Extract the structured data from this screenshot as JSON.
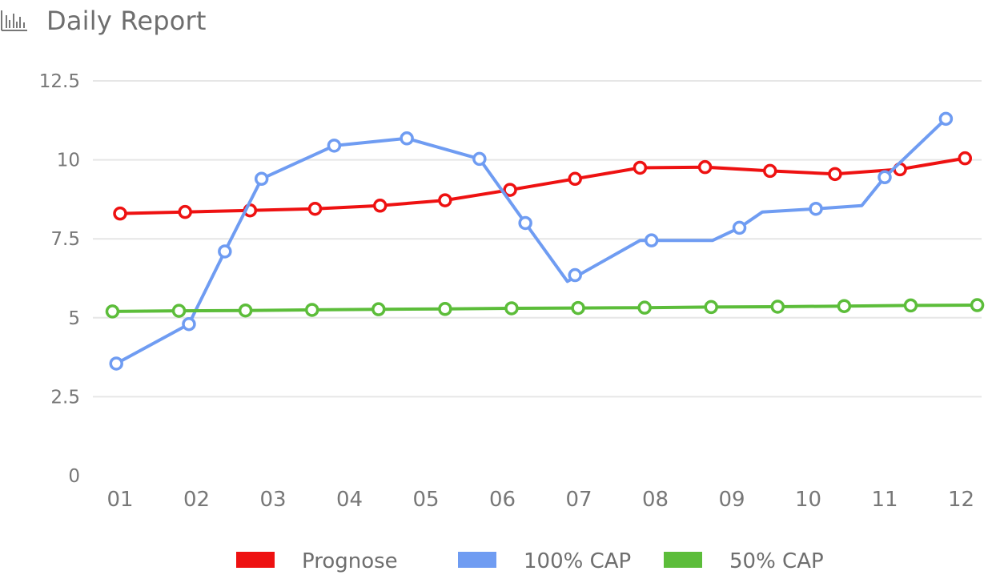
{
  "header": {
    "title": "Daily Report",
    "icon": "bar-chart-icon"
  },
  "chart_data": {
    "type": "line",
    "title": "Daily Report",
    "xlabel": "",
    "ylabel": "",
    "ylim": [
      0,
      12.5
    ],
    "yticks": [
      "0",
      "2.5",
      "5",
      "7.5",
      "10",
      "12.5"
    ],
    "categories": [
      "01",
      "02",
      "03",
      "04",
      "05",
      "06",
      "07",
      "08",
      "09",
      "10",
      "11",
      "12"
    ],
    "grid": true,
    "legend_position": "bottom",
    "series": [
      {
        "name": "Prognose",
        "color": "#ee1111",
        "points": [
          [
            0.0,
            8.3
          ],
          [
            0.85,
            8.35
          ],
          [
            1.7,
            8.4
          ],
          [
            2.55,
            8.45
          ],
          [
            3.4,
            8.55
          ],
          [
            4.25,
            8.72
          ],
          [
            5.1,
            9.05
          ],
          [
            5.95,
            9.4
          ],
          [
            6.8,
            9.75
          ],
          [
            7.65,
            9.77
          ],
          [
            8.5,
            9.65
          ],
          [
            9.35,
            9.55
          ],
          [
            10.2,
            9.7
          ],
          [
            11.05,
            10.05
          ]
        ],
        "markers": [
          [
            0.0,
            8.3
          ],
          [
            0.85,
            8.35
          ],
          [
            1.7,
            8.4
          ],
          [
            2.55,
            8.45
          ],
          [
            3.4,
            8.55
          ],
          [
            4.25,
            8.72
          ],
          [
            5.1,
            9.05
          ],
          [
            5.95,
            9.4
          ],
          [
            6.8,
            9.75
          ],
          [
            7.65,
            9.77
          ],
          [
            8.5,
            9.65
          ],
          [
            9.35,
            9.55
          ],
          [
            10.2,
            9.7
          ],
          [
            11.05,
            10.05
          ]
        ]
      },
      {
        "name": "100% CAP",
        "color": "#6f9cf2",
        "points": [
          [
            -0.05,
            3.55
          ],
          [
            0.9,
            4.8
          ],
          [
            1.37,
            7.1
          ],
          [
            1.85,
            9.4
          ],
          [
            2.8,
            10.45
          ],
          [
            3.75,
            10.68
          ],
          [
            4.7,
            10.03
          ],
          [
            5.3,
            8.0
          ],
          [
            5.85,
            6.15
          ],
          [
            6.8,
            7.45
          ],
          [
            7.75,
            7.45
          ],
          [
            8.1,
            7.85
          ],
          [
            8.4,
            8.35
          ],
          [
            9.1,
            8.45
          ],
          [
            9.7,
            8.55
          ],
          [
            10.0,
            9.45
          ],
          [
            10.8,
            11.3
          ]
        ],
        "markers": [
          [
            -0.05,
            3.55
          ],
          [
            0.9,
            4.8
          ],
          [
            1.37,
            7.1
          ],
          [
            1.85,
            9.4
          ],
          [
            2.8,
            10.45
          ],
          [
            3.75,
            10.68
          ],
          [
            4.7,
            10.03
          ],
          [
            5.3,
            8.0
          ],
          [
            5.95,
            6.35
          ],
          [
            6.95,
            7.45
          ],
          [
            8.1,
            7.85
          ],
          [
            9.1,
            8.45
          ],
          [
            10.0,
            9.45
          ],
          [
            10.8,
            11.3
          ]
        ]
      },
      {
        "name": "50% CAP",
        "color": "#5cbd3a",
        "points": [
          [
            -0.1,
            5.2
          ],
          [
            0.77,
            5.22
          ],
          [
            1.64,
            5.23
          ],
          [
            2.51,
            5.25
          ],
          [
            3.38,
            5.27
          ],
          [
            4.25,
            5.28
          ],
          [
            5.12,
            5.3
          ],
          [
            5.99,
            5.31
          ],
          [
            6.86,
            5.32
          ],
          [
            7.73,
            5.34
          ],
          [
            8.6,
            5.35
          ],
          [
            9.47,
            5.37
          ],
          [
            10.34,
            5.39
          ],
          [
            11.21,
            5.4
          ]
        ],
        "markers": [
          [
            -0.1,
            5.2
          ],
          [
            0.77,
            5.22
          ],
          [
            1.64,
            5.23
          ],
          [
            2.51,
            5.25
          ],
          [
            3.38,
            5.27
          ],
          [
            4.25,
            5.28
          ],
          [
            5.12,
            5.3
          ],
          [
            5.99,
            5.31
          ],
          [
            6.86,
            5.32
          ],
          [
            7.73,
            5.34
          ],
          [
            8.6,
            5.35
          ],
          [
            9.47,
            5.37
          ],
          [
            10.34,
            5.39
          ],
          [
            11.21,
            5.4
          ]
        ]
      }
    ]
  }
}
